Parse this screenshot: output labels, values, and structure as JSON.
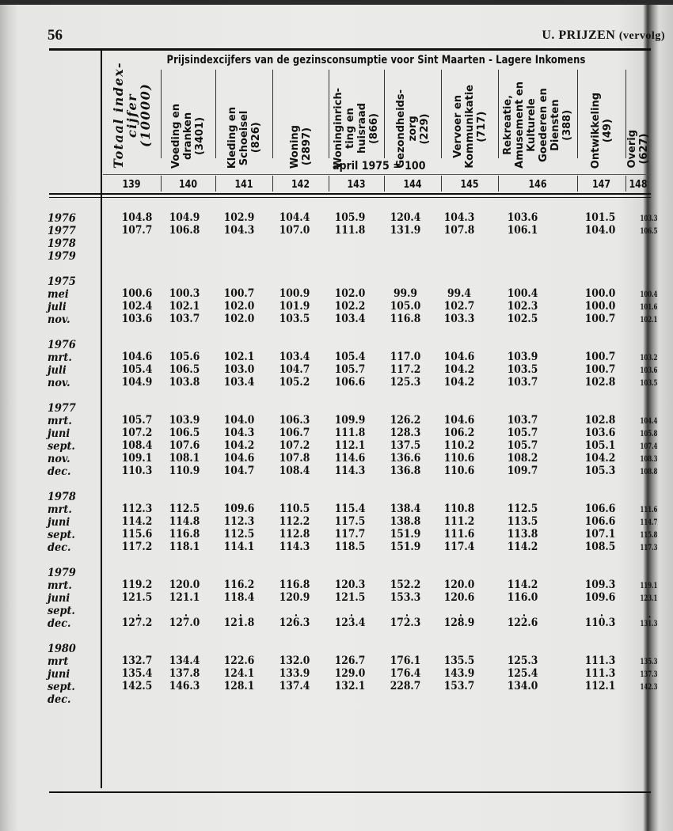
{
  "page_number": "56",
  "running_head": {
    "main": "U.  PRIJZEN",
    "sub": "(vervolg)"
  },
  "table": {
    "title": "Prijsindexcijfers van de gezinsconsumptie voor Sint Maarten - Lagere Inkomens",
    "base_note": "april 1975 = 100",
    "columns": [
      {
        "lines": [
          "Totaal index-",
          "cijfer",
          "(10000)"
        ],
        "number": "139"
      },
      {
        "lines": [
          "Voeding en",
          "dranken",
          "(3401)"
        ],
        "number": "140"
      },
      {
        "lines": [
          "Kleding en",
          "Schoeisel",
          "(826)"
        ],
        "number": "141"
      },
      {
        "lines": [
          "Woning",
          "(2897)"
        ],
        "number": "142"
      },
      {
        "lines": [
          "Woninginrich-",
          "ting en",
          "huisraad",
          "(866)"
        ],
        "number": "143"
      },
      {
        "lines": [
          "Gezondheids-",
          "zorg",
          "(229)"
        ],
        "number": "144"
      },
      {
        "lines": [
          "Vervoer en",
          "Kommunikatie",
          "(717)"
        ],
        "number": "145"
      },
      {
        "lines": [
          "Rekreatie,",
          "Amusement en",
          "Kulturele",
          "Goederen en",
          "Diensten",
          "(388)"
        ],
        "number": "146"
      },
      {
        "lines": [
          "Ontwikkeling",
          "(49)"
        ],
        "number": "147"
      },
      {
        "lines": [
          "Overig",
          "(627)"
        ],
        "number": "148"
      }
    ],
    "groups": [
      {
        "heading": "",
        "rows": [
          {
            "label": "1976",
            "values": [
              "104.8",
              "104.9",
              "102.9",
              "104.4",
              "105.9",
              "120.4",
              "104.3",
              "103.6",
              "101.5",
              "103.3"
            ]
          },
          {
            "label": "1977",
            "values": [
              "107.7",
              "106.8",
              "104.3",
              "107.0",
              "111.8",
              "131.9",
              "107.8",
              "106.1",
              "104.0",
              "106.5"
            ]
          },
          {
            "label": "1978",
            "values": []
          },
          {
            "label": "1979",
            "values": []
          }
        ]
      },
      {
        "heading": "1975",
        "rows": [
          {
            "label": "mei",
            "values": [
              "100.6",
              "100.3",
              "100.7",
              "100.9",
              "102.0",
              "99.9",
              "99.4",
              "100.4",
              "100.0",
              "100.4"
            ]
          },
          {
            "label": "juli",
            "values": [
              "102.4",
              "102.1",
              "102.0",
              "101.9",
              "102.2",
              "105.0",
              "102.7",
              "102.3",
              "100.0",
              "101.6"
            ]
          },
          {
            "label": "nov.",
            "values": [
              "103.6",
              "103.7",
              "102.0",
              "103.5",
              "103.4",
              "116.8",
              "103.3",
              "102.5",
              "100.7",
              "102.1"
            ]
          }
        ]
      },
      {
        "heading": "1976",
        "rows": [
          {
            "label": "mrt.",
            "values": [
              "104.6",
              "105.6",
              "102.1",
              "103.4",
              "105.4",
              "117.0",
              "104.6",
              "103.9",
              "100.7",
              "103.2"
            ]
          },
          {
            "label": "juli",
            "values": [
              "105.4",
              "106.5",
              "103.0",
              "104.7",
              "105.7",
              "117.2",
              "104.2",
              "103.5",
              "100.7",
              "103.6"
            ]
          },
          {
            "label": "nov.",
            "values": [
              "104.9",
              "103.8",
              "103.4",
              "105.2",
              "106.6",
              "125.3",
              "104.2",
              "103.7",
              "102.8",
              "103.5"
            ]
          }
        ]
      },
      {
        "heading": "1977",
        "rows": [
          {
            "label": "mrt.",
            "values": [
              "105.7",
              "103.9",
              "104.0",
              "106.3",
              "109.9",
              "126.2",
              "104.6",
              "103.7",
              "102.8",
              "104.4"
            ]
          },
          {
            "label": "juni",
            "values": [
              "107.2",
              "106.5",
              "104.3",
              "106.7",
              "111.8",
              "128.3",
              "106.2",
              "105.7",
              "103.6",
              "105.8"
            ]
          },
          {
            "label": "sept.",
            "values": [
              "108.4",
              "107.6",
              "104.2",
              "107.2",
              "112.1",
              "137.5",
              "110.2",
              "105.7",
              "105.1",
              "107.4"
            ]
          },
          {
            "label": "nov.",
            "values": [
              "109.1",
              "108.1",
              "104.6",
              "107.8",
              "114.6",
              "136.6",
              "110.6",
              "108.2",
              "104.2",
              "108.3"
            ]
          },
          {
            "label": "dec.",
            "values": [
              "110.3",
              "110.9",
              "104.7",
              "108.4",
              "114.3",
              "136.8",
              "110.6",
              "109.7",
              "105.3",
              "108.8"
            ]
          }
        ]
      },
      {
        "heading": "1978",
        "rows": [
          {
            "label": "mrt.",
            "values": [
              "112.3",
              "112.5",
              "109.6",
              "110.5",
              "115.4",
              "138.4",
              "110.8",
              "112.5",
              "106.6",
              "111.6"
            ]
          },
          {
            "label": "juni",
            "values": [
              "114.2",
              "114.8",
              "112.3",
              "112.2",
              "117.5",
              "138.8",
              "111.2",
              "113.5",
              "106.6",
              "114.7"
            ]
          },
          {
            "label": "sept.",
            "values": [
              "115.6",
              "116.8",
              "112.5",
              "112.8",
              "117.7",
              "151.9",
              "111.6",
              "113.8",
              "107.1",
              "115.8"
            ]
          },
          {
            "label": "dec.",
            "values": [
              "117.2",
              "118.1",
              "114.1",
              "114.3",
              "118.5",
              "151.9",
              "117.4",
              "114.2",
              "108.5",
              "117.3"
            ]
          }
        ]
      },
      {
        "heading": "1979",
        "rows": [
          {
            "label": "mrt.",
            "values": [
              "119.2",
              "120.0",
              "116.2",
              "116.8",
              "120.3",
              "152.2",
              "120.0",
              "114.2",
              "109.3",
              "119.1"
            ]
          },
          {
            "label": "juni",
            "values": [
              "121.5",
              "121.1",
              "118.4",
              "120.9",
              "121.5",
              "153.3",
              "120.6",
              "116.0",
              "109.6",
              "123.1"
            ]
          },
          {
            "label": "sept.",
            "values": []
          },
          {
            "label": "dec.",
            "marked": true,
            "values": [
              "127.2",
              "127.0",
              "121.8",
              "126.3",
              "123.4",
              "172.3",
              "128.9",
              "122.6",
              "110.3",
              "131.3"
            ]
          }
        ]
      },
      {
        "heading": "1980",
        "rows": [
          {
            "label": "mrt",
            "values": [
              "132.7",
              "134.4",
              "122.6",
              "132.0",
              "126.7",
              "176.1",
              "135.5",
              "125.3",
              "111.3",
              "135.3"
            ]
          },
          {
            "label": "juni",
            "values": [
              "135.4",
              "137.8",
              "124.1",
              "133.9",
              "129.0",
              "176.4",
              "143.9",
              "125.4",
              "111.3",
              "137.3"
            ]
          },
          {
            "label": "sept.",
            "values": [
              "142.5",
              "146.3",
              "128.1",
              "137.4",
              "132.1",
              "228.7",
              "153.7",
              "134.0",
              "112.1",
              "142.3"
            ]
          },
          {
            "label": "dec.",
            "values": []
          }
        ]
      }
    ]
  }
}
